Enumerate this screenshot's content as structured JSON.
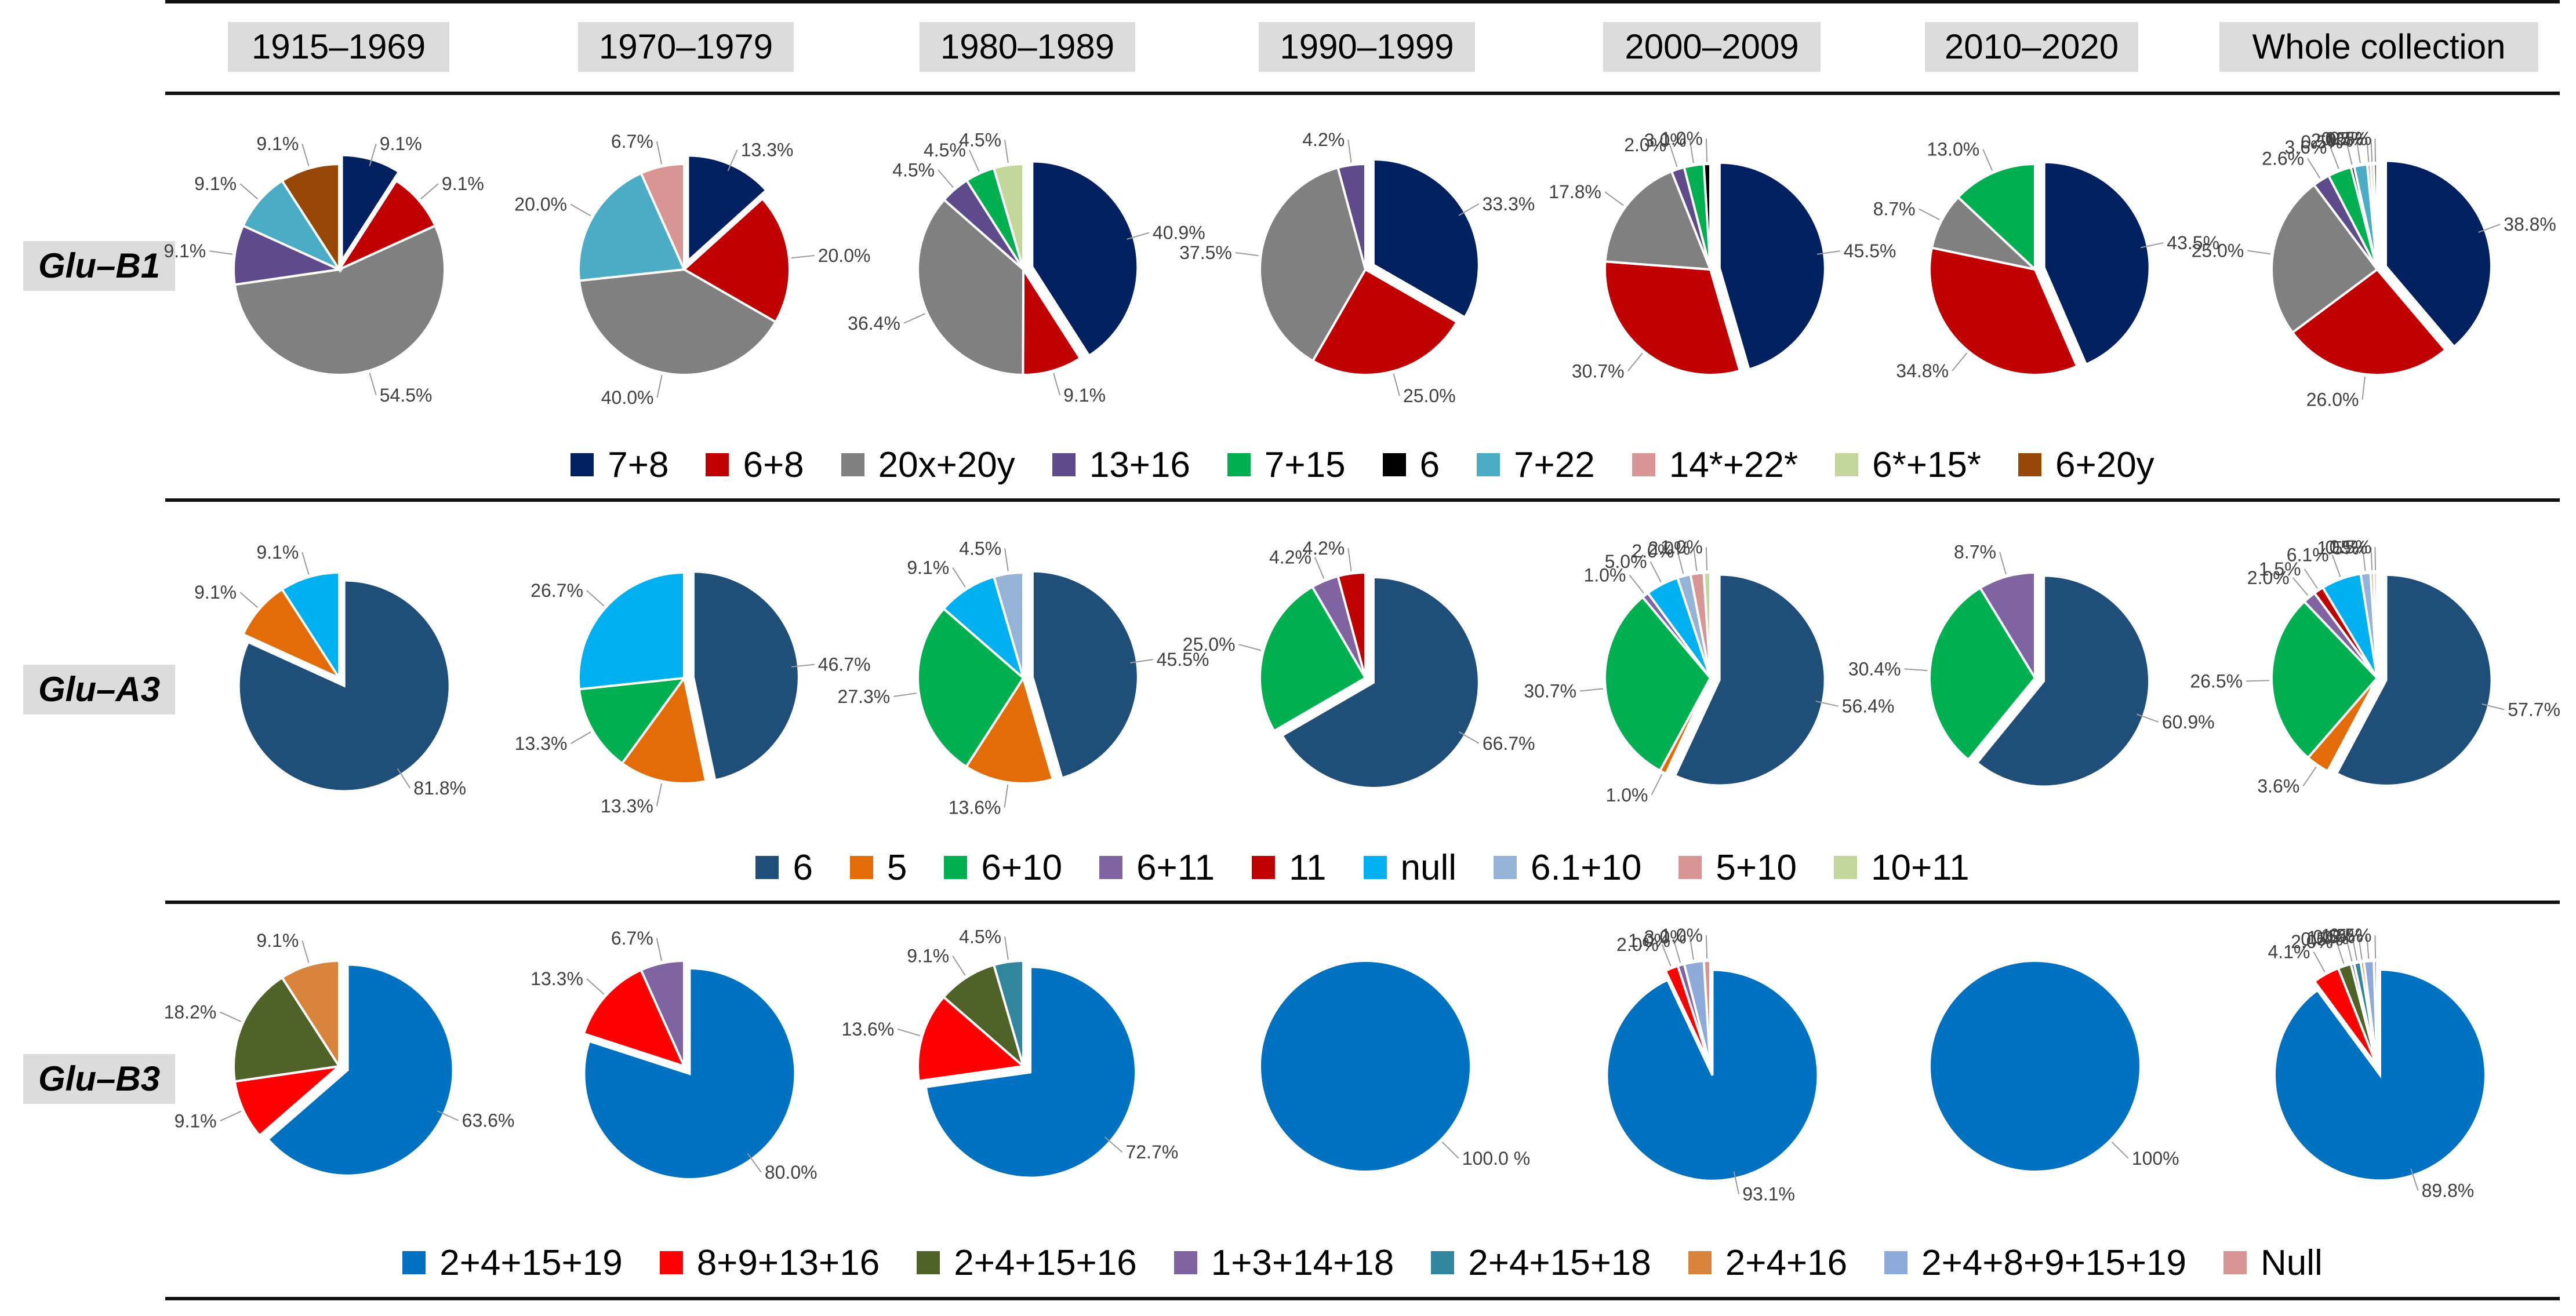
{
  "periods": [
    "1915–1969",
    "1970–1979",
    "1980–1989",
    "1990–1999",
    "2000–2009",
    "2010–2020",
    "Whole collection"
  ],
  "chart_data": [
    {
      "type": "pie",
      "title": "Glu–B1",
      "categories": [
        "7+8",
        "6+8",
        "20x+20y",
        "13+16",
        "7+15",
        "6",
        "7+22",
        "14*+22*",
        "6*+15*",
        "6+20y"
      ],
      "colors": [
        "#002060",
        "#c00000",
        "#808080",
        "#5f4b8b",
        "#00b050",
        "#000000",
        "#4bacc6",
        "#d99594",
        "#c3d69b",
        "#974706"
      ],
      "series": [
        {
          "name": "1915–1969",
          "values": [
            9.1,
            9.1,
            54.5,
            9.1,
            0,
            0,
            9.1,
            0,
            0,
            9.1
          ],
          "labels": [
            "9.1%",
            "9.1%",
            "54.5%",
            "9.1%",
            "",
            "",
            "9.1%",
            "",
            "",
            "9.1%"
          ]
        },
        {
          "name": "1970–1979",
          "values": [
            13.3,
            20.0,
            40.0,
            0,
            0,
            0,
            20.0,
            6.7,
            0,
            0
          ],
          "labels": [
            "13.3%",
            "20.0%",
            "40.0%",
            "",
            "",
            "",
            "20.0%",
            "6.7%",
            "",
            ""
          ]
        },
        {
          "name": "1980–1989",
          "values": [
            40.9,
            9.1,
            36.4,
            4.5,
            4.5,
            0,
            0,
            0,
            4.5,
            0
          ],
          "labels": [
            "40.9%",
            "9.1%",
            "36.4%",
            "4.5%",
            "4.5%",
            "",
            "",
            "",
            "4.5%",
            ""
          ]
        },
        {
          "name": "1990–1999",
          "values": [
            33.3,
            25.0,
            37.5,
            4.2,
            0,
            0,
            0,
            0,
            0,
            0
          ],
          "labels": [
            "33.3%",
            "25.0%",
            "37.5%",
            "4.2%",
            "",
            "",
            "",
            "",
            "",
            ""
          ]
        },
        {
          "name": "2000–2009",
          "values": [
            45.5,
            30.7,
            17.8,
            2.0,
            3.0,
            1.0,
            0,
            0,
            0,
            0
          ],
          "labels": [
            "45.5%",
            "30.7%",
            "17.8%",
            "2.0%",
            "3.0%",
            "1.0%",
            "",
            "",
            "",
            ""
          ]
        },
        {
          "name": "2010–2020",
          "values": [
            43.5,
            34.8,
            8.7,
            0,
            13.0,
            0,
            0,
            0,
            0,
            0
          ],
          "labels": [
            "43.5%",
            "34.8%",
            "8.7%",
            "",
            "13.0%",
            "",
            "",
            "",
            "",
            ""
          ]
        },
        {
          "name": "Whole collection",
          "values": [
            38.8,
            26.0,
            25.0,
            2.6,
            3.6,
            0.5,
            2.0,
            0.5,
            0.5,
            0.5
          ],
          "labels": [
            "38.8%",
            "26.0%",
            "25.0%",
            "2.6%",
            "3.6%",
            "0.5%",
            "2.0%",
            "0.5%",
            "0.5%",
            "0.5%"
          ]
        }
      ]
    },
    {
      "type": "pie",
      "title": "Glu–A3",
      "categories": [
        "6",
        "5",
        "6+10",
        "6+11",
        "11",
        "null",
        "6.1+10",
        "5+10",
        "10+11"
      ],
      "colors": [
        "#1f4e79",
        "#e36c09",
        "#00b050",
        "#8064a2",
        "#c00000",
        "#00b0f0",
        "#95b3d7",
        "#d99594",
        "#c3d69b"
      ],
      "series": [
        {
          "name": "1915–1969",
          "values": [
            81.8,
            9.1,
            0,
            0,
            0,
            9.1,
            0,
            0,
            0
          ],
          "labels": [
            "81.8%",
            "9.1%",
            "",
            "",
            "",
            "9.1%",
            "",
            "",
            ""
          ]
        },
        {
          "name": "1970–1979",
          "values": [
            46.7,
            13.3,
            13.3,
            0,
            0,
            26.7,
            0,
            0,
            0
          ],
          "labels": [
            "46.7%",
            "13.3%",
            "13.3%",
            "",
            "",
            "26.7%",
            "",
            "",
            ""
          ]
        },
        {
          "name": "1980–1989",
          "values": [
            45.5,
            13.6,
            27.3,
            0,
            0,
            9.1,
            4.5,
            0,
            0
          ],
          "labels": [
            "45.5%",
            "13.6%",
            "27.3%",
            "",
            "",
            "9.1%",
            "4.5%",
            "",
            ""
          ]
        },
        {
          "name": "1990–1999",
          "values": [
            66.7,
            0,
            25.0,
            4.2,
            4.2,
            0,
            0,
            0,
            0
          ],
          "labels": [
            "66.7%",
            "",
            "25.0%",
            "4.2%",
            "4.2%",
            "",
            "",
            "",
            ""
          ]
        },
        {
          "name": "2000–2009",
          "values": [
            56.4,
            1.0,
            30.7,
            1.0,
            0,
            5.0,
            2.0,
            2.0,
            1.0
          ],
          "labels": [
            "56.4%",
            "1.0%",
            "30.7%",
            "1.0%",
            "",
            "5.0%",
            "2.0%",
            "2.0%",
            "1.0%"
          ]
        },
        {
          "name": "2010–2020",
          "values": [
            60.9,
            0,
            30.4,
            8.7,
            0,
            0,
            0,
            0,
            0
          ],
          "labels": [
            "60.9%",
            "",
            "30.4%",
            "8.7%",
            "",
            "",
            "",
            "",
            ""
          ]
        },
        {
          "name": "Whole collection",
          "values": [
            57.7,
            3.6,
            26.5,
            2.0,
            1.5,
            6.1,
            1.5,
            0.5,
            0.5
          ],
          "labels": [
            "57.7%",
            "3.6%",
            "26.5%",
            "2.0%",
            "1.5%",
            "6.1%",
            "1.5%",
            "0.5%",
            "0.5%"
          ]
        }
      ]
    },
    {
      "type": "pie",
      "title": "Glu–B3",
      "categories": [
        "2+4+15+19",
        "8+9+13+16",
        "2+4+15+16",
        "1+3+14+18",
        "2+4+15+18",
        "2+4+16",
        "2+4+8+9+15+19",
        "Null"
      ],
      "colors": [
        "#0070c0",
        "#ff0000",
        "#4f6228",
        "#8064a2",
        "#31859c",
        "#d9843c",
        "#8eaadb",
        "#d99594"
      ],
      "series": [
        {
          "name": "1915–1969",
          "values": [
            63.6,
            9.1,
            18.2,
            0,
            0,
            9.1,
            0,
            0
          ],
          "labels": [
            "63.6%",
            "9.1%",
            "18.2%",
            "",
            "",
            "9.1%",
            "",
            ""
          ]
        },
        {
          "name": "1970–1979",
          "values": [
            80.0,
            13.3,
            0,
            6.7,
            0,
            0,
            0,
            0
          ],
          "labels": [
            "80.0%",
            "13.3%",
            "",
            "6.7%",
            "",
            "",
            "",
            ""
          ]
        },
        {
          "name": "1980–1989",
          "values": [
            72.7,
            13.6,
            9.1,
            0,
            4.5,
            0,
            0,
            0
          ],
          "labels": [
            "72.7%",
            "13.6%",
            "9.1%",
            "",
            "4.5%",
            "",
            "",
            ""
          ]
        },
        {
          "name": "1990–1999",
          "values": [
            100,
            0,
            0,
            0,
            0,
            0,
            0,
            0
          ],
          "labels": [
            "100.0 %",
            "",
            "",
            "",
            "",
            "",
            "",
            ""
          ]
        },
        {
          "name": "2000–2009",
          "values": [
            93.1,
            2.0,
            0,
            1.0,
            0,
            0,
            3.0,
            1.0
          ],
          "labels": [
            "93.1%",
            "2.0%",
            "",
            "1.0%",
            "",
            "",
            "3.0%",
            "1.0%"
          ]
        },
        {
          "name": "2010–2020",
          "values": [
            100,
            0,
            0,
            0,
            0,
            0,
            0,
            0
          ],
          "labels": [
            "100%",
            "",
            "",
            "",
            "",
            "",
            "",
            ""
          ]
        },
        {
          "name": "Whole collection",
          "values": [
            89.8,
            4.1,
            2.0,
            0.5,
            1.0,
            0.5,
            1.5,
            0.5
          ],
          "labels": [
            "89.8%",
            "4.1%",
            "2.0%",
            "0.5%",
            "1.0%",
            "0.5%",
            "1.5%",
            "0.5%"
          ]
        }
      ]
    }
  ]
}
